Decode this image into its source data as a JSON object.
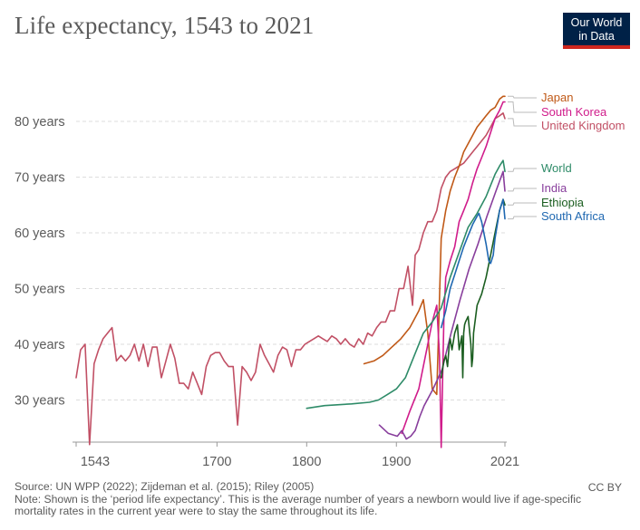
{
  "title": "Life expectancy, 1543 to 2021",
  "logo": {
    "line1": "Our World",
    "line2": "in Data"
  },
  "source": "Source: UN WPP (2022); Zijdeman et al. (2015); Riley (2005)",
  "note": "Note: Shown is the ‘period life expectancy’. This is the average number of years a newborn would live if age-specific mortality rates in the current year were to stay the same throughout its life.",
  "license": "CC BY",
  "chart_data": {
    "type": "line",
    "title": "Life expectancy, 1543 to 2021",
    "xlabel": "",
    "ylabel": "",
    "xlim": [
      1543,
      2021
    ],
    "ylim": [
      20,
      85
    ],
    "y_ticks": [
      {
        "value": 30,
        "label": "30 years"
      },
      {
        "value": 40,
        "label": "40 years"
      },
      {
        "value": 50,
        "label": "50 years"
      },
      {
        "value": 60,
        "label": "60 years"
      },
      {
        "value": 70,
        "label": "70 years"
      },
      {
        "value": 80,
        "label": "80 years"
      }
    ],
    "x_ticks": [
      {
        "value": 1543,
        "label": "1543"
      },
      {
        "value": 1700,
        "label": "1700"
      },
      {
        "value": 1800,
        "label": "1800"
      },
      {
        "value": 1900,
        "label": "1900"
      },
      {
        "value": 2021,
        "label": "2021"
      }
    ],
    "legend_position": "right",
    "series": [
      {
        "name": "United Kingdom",
        "color": "#c15065",
        "x": [
          1543,
          1548,
          1553,
          1558,
          1563,
          1568,
          1573,
          1578,
          1583,
          1588,
          1593,
          1598,
          1603,
          1608,
          1613,
          1618,
          1623,
          1628,
          1633,
          1638,
          1643,
          1648,
          1653,
          1658,
          1663,
          1668,
          1673,
          1678,
          1683,
          1688,
          1693,
          1698,
          1703,
          1708,
          1713,
          1718,
          1723,
          1728,
          1733,
          1738,
          1743,
          1748,
          1753,
          1758,
          1763,
          1768,
          1773,
          1778,
          1783,
          1788,
          1793,
          1798,
          1803,
          1808,
          1813,
          1818,
          1823,
          1828,
          1833,
          1838,
          1843,
          1848,
          1853,
          1858,
          1863,
          1868,
          1873,
          1878,
          1883,
          1888,
          1893,
          1898,
          1903,
          1908,
          1913,
          1918,
          1921,
          1925,
          1930,
          1935,
          1940,
          1945,
          1950,
          1955,
          1960,
          1965,
          1970,
          1975,
          1980,
          1985,
          1990,
          1995,
          2000,
          2005,
          2010,
          2015,
          2019,
          2021
        ],
        "y": [
          34,
          39,
          40,
          22,
          36.5,
          39,
          41,
          42,
          43,
          37,
          38,
          37,
          38,
          40,
          37,
          40,
          36,
          39.5,
          39.5,
          34,
          37,
          40,
          37.5,
          33,
          33,
          32,
          35,
          33,
          31,
          36,
          38,
          38.5,
          38.5,
          37,
          36,
          36,
          25.5,
          36,
          35,
          33.5,
          35,
          40,
          38,
          36.5,
          35,
          38,
          39.5,
          39,
          36,
          39,
          39,
          40,
          40.5,
          41,
          41.5,
          41,
          40.5,
          41.5,
          41,
          40,
          41,
          40,
          39.5,
          41,
          40,
          42,
          41.5,
          43,
          44,
          44,
          46,
          46,
          50,
          50,
          54,
          47,
          56,
          57,
          60,
          62,
          62,
          64,
          68,
          70,
          71,
          71.5,
          72,
          72.5,
          73.5,
          74.5,
          75.5,
          76.5,
          77.5,
          79,
          80.5,
          81,
          81.5,
          80.5
        ]
      },
      {
        "name": "Japan",
        "color": "#c05917",
        "x": [
          1864,
          1875,
          1885,
          1895,
          1905,
          1915,
          1925,
          1930,
          1935,
          1940,
          1945,
          1950,
          1955,
          1960,
          1965,
          1970,
          1975,
          1980,
          1985,
          1990,
          1995,
          2000,
          2005,
          2010,
          2015,
          2019,
          2021
        ],
        "y": [
          36.5,
          37,
          38,
          39.5,
          41,
          43,
          46,
          48,
          42,
          32,
          31,
          59,
          64,
          67.5,
          70,
          72,
          74.5,
          76,
          77.5,
          79,
          80,
          81,
          82,
          82.5,
          84,
          84.5,
          84.5
        ]
      },
      {
        "name": "South Korea",
        "color": "#d01c8b",
        "x": [
          1906,
          1915,
          1925,
          1935,
          1940,
          1945,
          1948,
          1950,
          1953,
          1955,
          1960,
          1965,
          1970,
          1975,
          1980,
          1985,
          1990,
          1995,
          2000,
          2005,
          2010,
          2015,
          2019,
          2021
        ],
        "y": [
          24,
          28,
          32,
          40,
          44,
          47,
          38,
          21.5,
          45,
          52,
          55,
          57.5,
          62,
          64,
          66,
          69,
          71.5,
          73.5,
          75.5,
          78,
          80.5,
          82,
          83.5,
          83.5
        ]
      },
      {
        "name": "World",
        "color": "#2e8b68",
        "x": [
          1800,
          1820,
          1850,
          1870,
          1880,
          1890,
          1900,
          1910,
          1920,
          1930,
          1940,
          1950,
          1960,
          1970,
          1980,
          1990,
          2000,
          2010,
          2015,
          2019,
          2021
        ],
        "y": [
          28.5,
          29,
          29.3,
          29.6,
          30,
          31,
          32,
          34,
          38,
          42,
          44,
          46.5,
          52,
          56.5,
          61,
          63.5,
          66.5,
          70.5,
          72,
          73,
          71
        ]
      },
      {
        "name": "India",
        "color": "#883e9c",
        "x": [
          1881,
          1891,
          1901,
          1906,
          1911,
          1916,
          1921,
          1926,
          1931,
          1941,
          1951,
          1961,
          1971,
          1981,
          1991,
          2001,
          2011,
          2019,
          2021
        ],
        "y": [
          25.5,
          24,
          23.5,
          24.5,
          23,
          23.5,
          24.5,
          27,
          29,
          32,
          35.5,
          42,
          48,
          53.5,
          58,
          63,
          67.5,
          71,
          67.5
        ]
      },
      {
        "name": "Ethiopia",
        "color": "#1b5e20",
        "x": [
          1950,
          1953,
          1955,
          1957,
          1959,
          1960,
          1962,
          1965,
          1968,
          1970,
          1973,
          1974,
          1975,
          1976,
          1977,
          1980,
          1983,
          1984,
          1985,
          1986,
          1990,
          1995,
          2000,
          2005,
          2010,
          2015,
          2019,
          2021
        ],
        "y": [
          34,
          37,
          38,
          36,
          40,
          41,
          39,
          42,
          43.5,
          39,
          41.5,
          34,
          42,
          43.5,
          44,
          45,
          40,
          36,
          37.5,
          42,
          47,
          49,
          52,
          56,
          60,
          64,
          66,
          65
        ]
      },
      {
        "name": "South Africa",
        "color": "#1f68b1",
        "x": [
          1950,
          1955,
          1960,
          1965,
          1970,
          1975,
          1980,
          1985,
          1990,
          1992,
          1995,
          2000,
          2003,
          2005,
          2008,
          2010,
          2015,
          2019,
          2021
        ],
        "y": [
          43,
          46,
          50,
          52.5,
          55,
          57.5,
          59.5,
          61.5,
          63,
          63.5,
          62,
          58,
          55,
          54.5,
          56,
          59,
          64,
          66,
          62.5
        ]
      }
    ]
  }
}
